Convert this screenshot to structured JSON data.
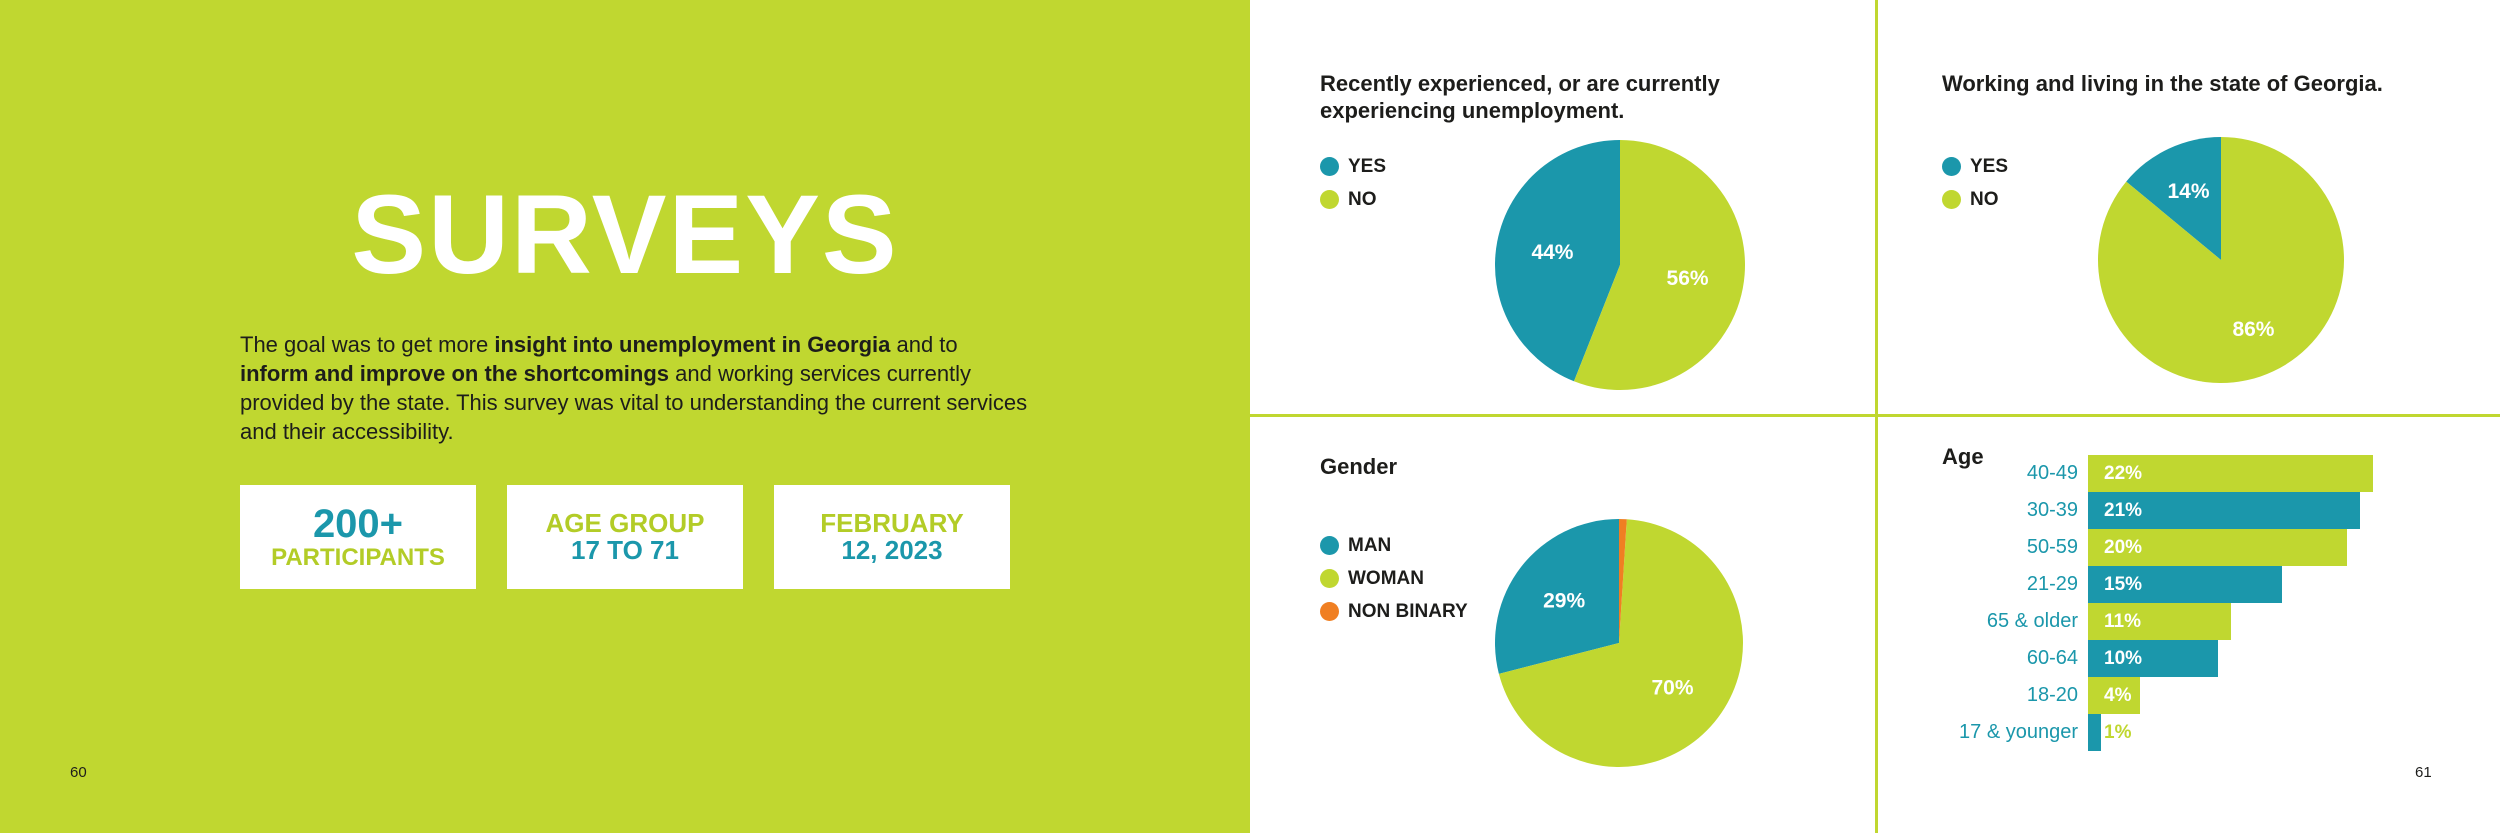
{
  "left_page": {
    "title": "SURVEYS",
    "intro": [
      {
        "text": "The goal was to get more ",
        "bold": false
      },
      {
        "text": "insight into unemployment in Georgia",
        "bold": true
      },
      {
        "text": " and to ",
        "bold": false
      },
      {
        "text": "inform and improve on the shortcomings",
        "bold": true
      },
      {
        "text": " and working services currently provided by the state. This survey was vital to understanding the current services and their accessibility.",
        "bold": false
      }
    ],
    "stats": [
      {
        "line1": "200+",
        "line2": "PARTICIPANTS"
      },
      {
        "line1": "AGE GROUP",
        "line2": "17 TO 71"
      },
      {
        "line1": "FEBRUARY",
        "line2": "12, 2023"
      }
    ],
    "page_number": "60"
  },
  "right_page": {
    "page_number": "61"
  },
  "colors": {
    "lime": "#c0d730",
    "teal": "#1b97ab",
    "orange": "#f07f22"
  },
  "chart_data": [
    {
      "type": "pie",
      "title": "Recently experienced, or are currently experiencing unemployment.",
      "categories": [
        "YES",
        "NO"
      ],
      "values": [
        44,
        56
      ],
      "labels": [
        "44%",
        "56%"
      ],
      "colors": [
        "#1b97ab",
        "#c0d730"
      ],
      "legend": "left"
    },
    {
      "type": "pie",
      "title": "Working and living in the state of Georgia.",
      "categories": [
        "YES",
        "NO"
      ],
      "values": [
        14,
        86
      ],
      "labels": [
        "14%",
        "86%"
      ],
      "colors": [
        "#1b97ab",
        "#c0d730"
      ],
      "legend": "left"
    },
    {
      "type": "pie",
      "title": "Gender",
      "categories": [
        "MAN",
        "WOMAN",
        "NON BINARY"
      ],
      "values": [
        29,
        70,
        1
      ],
      "labels": [
        "29%",
        "70%",
        ""
      ],
      "colors": [
        "#1b97ab",
        "#c0d730",
        "#f07f22"
      ],
      "legend": "left"
    },
    {
      "type": "bar",
      "orientation": "horizontal",
      "title": "Age",
      "categories": [
        "40-49",
        "30-39",
        "50-59",
        "21-29",
        "65 & older",
        "60-64",
        "18-20",
        "17 & younger"
      ],
      "values": [
        22,
        21,
        20,
        15,
        11,
        10,
        4,
        1
      ],
      "labels": [
        "22%",
        "21%",
        "20%",
        "15%",
        "11%",
        "10%",
        "4%",
        "1%"
      ],
      "colors": [
        "#c0d730",
        "#1b97ab",
        "#c0d730",
        "#1b97ab",
        "#c0d730",
        "#1b97ab",
        "#c0d730",
        "#1b97ab"
      ]
    }
  ]
}
